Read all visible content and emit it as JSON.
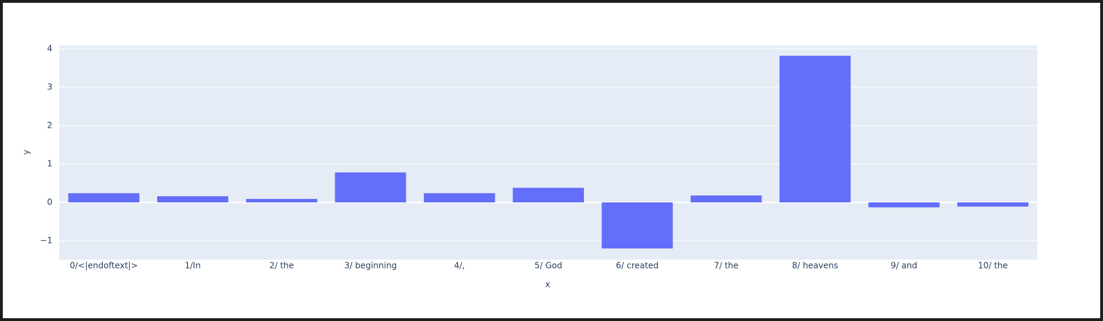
{
  "chart_data": {
    "type": "bar",
    "x_label": "x",
    "y_label": "y",
    "categories": [
      "0/<|endoftext|>",
      "1/In",
      "2/ the",
      "3/ beginning",
      "4/,",
      "5/ God",
      "6/ created",
      "7/ the",
      "8/ heavens",
      "9/ and",
      "10/ the"
    ],
    "values": [
      0.24,
      0.16,
      0.09,
      0.78,
      0.24,
      0.38,
      -1.2,
      0.18,
      3.82,
      -0.13,
      -0.11
    ],
    "color": "#636efa",
    "ylim": [
      -1.49,
      4.09
    ],
    "yticks": [
      {
        "value": -1,
        "label": "−1"
      },
      0,
      1,
      2,
      3,
      4
    ],
    "grid": true
  }
}
